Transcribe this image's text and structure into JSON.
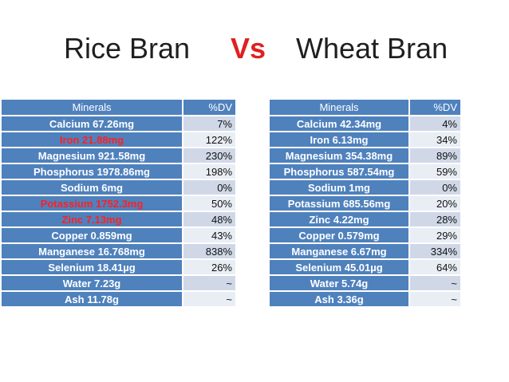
{
  "title": {
    "left": "Rice Bran",
    "vs": "Vs",
    "right": "Wheat Bran"
  },
  "colors": {
    "header_blue": "#4f81bd",
    "row_light": "#d0d8e8",
    "row_lighter": "#e9edf4",
    "highlight_red": "#ff2020",
    "vs_red": "#e02020"
  },
  "rice_bran": {
    "headers": {
      "name": "Minerals",
      "dv": "%DV"
    },
    "rows": [
      {
        "name": "Calcium 67.26mg",
        "dv": "7%",
        "highlight": false
      },
      {
        "name": "Iron 21.88mg",
        "dv": "122%",
        "highlight": true
      },
      {
        "name": "Magnesium 921.58mg",
        "dv": "230%",
        "highlight": false
      },
      {
        "name": "Phosphorus 1978.86mg",
        "dv": "198%",
        "highlight": false
      },
      {
        "name": "Sodium 6mg",
        "dv": "0%",
        "highlight": false
      },
      {
        "name": "Potassium 1752.3mg",
        "dv": "50%",
        "highlight": true
      },
      {
        "name": "Zinc 7.13mg",
        "dv": "48%",
        "highlight": true
      },
      {
        "name": "Copper 0.859mg",
        "dv": "43%",
        "highlight": false
      },
      {
        "name": "Manganese 16.768mg",
        "dv": "838%",
        "highlight": false
      },
      {
        "name": "Selenium 18.41µg",
        "dv": "26%",
        "highlight": false
      },
      {
        "name": "Water 7.23g",
        "dv": "~",
        "highlight": false
      },
      {
        "name": "Ash 11.78g",
        "dv": "~",
        "highlight": false
      }
    ]
  },
  "wheat_bran": {
    "headers": {
      "name": "Minerals",
      "dv": "%DV"
    },
    "rows": [
      {
        "name": "Calcium 42.34mg",
        "dv": "4%",
        "highlight": false
      },
      {
        "name": "Iron 6.13mg",
        "dv": "34%",
        "highlight": false
      },
      {
        "name": "Magnesium 354.38mg",
        "dv": "89%",
        "highlight": false
      },
      {
        "name": "Phosphorus 587.54mg",
        "dv": "59%",
        "highlight": false
      },
      {
        "name": "Sodium 1mg",
        "dv": "0%",
        "highlight": false
      },
      {
        "name": "Potassium 685.56mg",
        "dv": "20%",
        "highlight": false
      },
      {
        "name": "Zinc 4.22mg",
        "dv": "28%",
        "highlight": false
      },
      {
        "name": "Copper 0.579mg",
        "dv": "29%",
        "highlight": false
      },
      {
        "name": "Manganese 6.67mg",
        "dv": "334%",
        "highlight": false
      },
      {
        "name": "Selenium 45.01µg",
        "dv": "64%",
        "highlight": false
      },
      {
        "name": "Water 5.74g",
        "dv": "~",
        "highlight": false
      },
      {
        "name": "Ash 3.36g",
        "dv": "~",
        "highlight": false
      }
    ]
  }
}
